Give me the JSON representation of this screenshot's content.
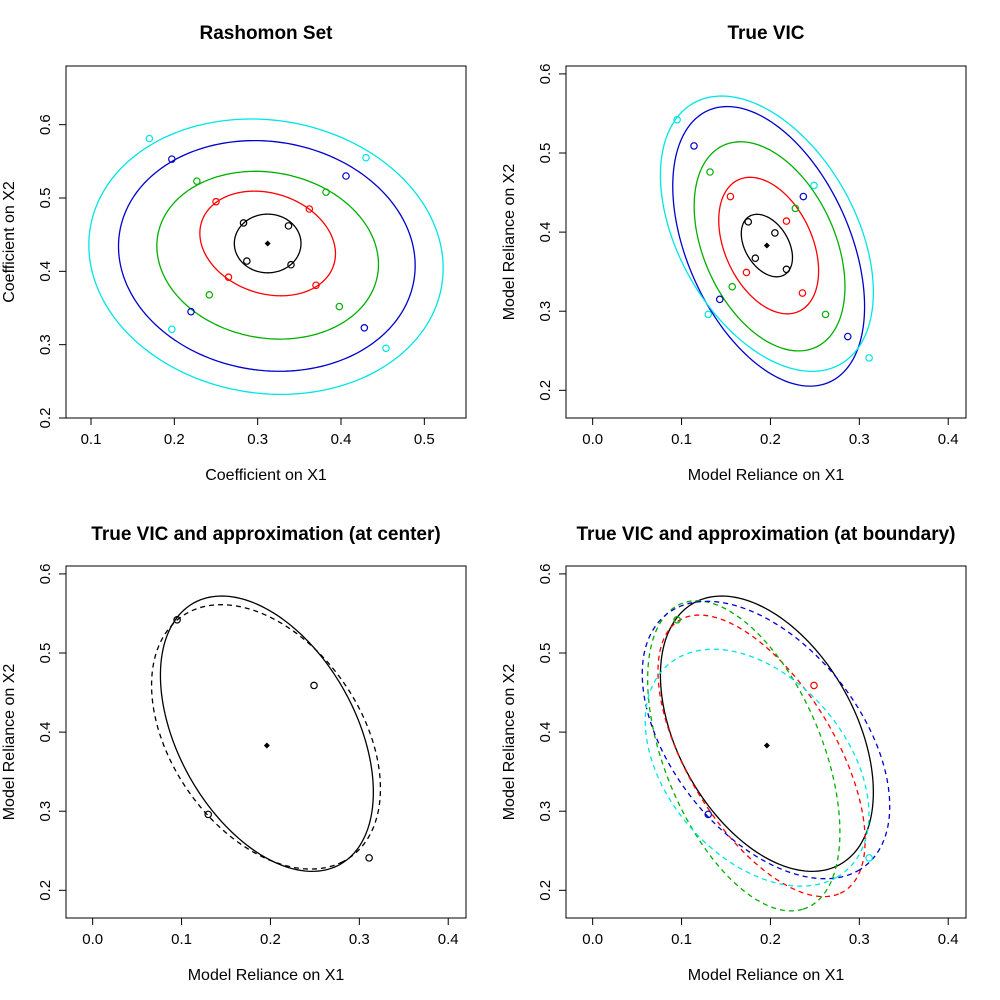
{
  "chart_data": [
    {
      "type": "contour",
      "title": "Rashomon Set",
      "xlabel": "Coefficient on X1",
      "ylabel": "Coefficient on X2",
      "xlim": [
        0.07,
        0.55
      ],
      "ylim": [
        0.2,
        0.68
      ],
      "xticks": [
        0.1,
        0.2,
        0.3,
        0.4,
        0.5
      ],
      "xtick_labels": [
        "0.1",
        "0.2",
        "0.3",
        "0.4",
        "0.5"
      ],
      "yticks": [
        0.2,
        0.3,
        0.4,
        0.5,
        0.6
      ],
      "ytick_labels": [
        "0.2",
        "0.3",
        "0.4",
        "0.5",
        "0.6"
      ],
      "center": [
        0.312,
        0.438
      ],
      "ellipses": [
        {
          "color": "#000000",
          "dash": "solid",
          "cx": 0.312,
          "cy": 0.438,
          "rx": 0.04,
          "ry": 0.04,
          "theta": -35,
          "points": [
            [
              0.283,
              0.466
            ],
            [
              0.337,
              0.462
            ],
            [
              0.287,
              0.414
            ],
            [
              0.34,
              0.409
            ]
          ]
        },
        {
          "color": "#ff0000",
          "dash": "solid",
          "cx": 0.312,
          "cy": 0.438,
          "rx": 0.085,
          "ry": 0.067,
          "theta": -28,
          "points": [
            [
              0.25,
              0.495
            ],
            [
              0.362,
              0.485
            ],
            [
              0.265,
              0.392
            ],
            [
              0.37,
              0.381
            ]
          ]
        },
        {
          "color": "#00b000",
          "dash": "solid",
          "cx": 0.312,
          "cy": 0.422,
          "rx": 0.135,
          "ry": 0.112,
          "theta": -18,
          "points": [
            [
              0.227,
              0.523
            ],
            [
              0.382,
              0.508
            ],
            [
              0.242,
              0.368
            ],
            [
              0.398,
              0.352
            ]
          ]
        },
        {
          "color": "#0000cc",
          "dash": "solid",
          "cx": 0.311,
          "cy": 0.421,
          "rx": 0.18,
          "ry": 0.155,
          "theta": -17,
          "points": [
            [
              0.197,
              0.553
            ],
            [
              0.406,
              0.53
            ],
            [
              0.22,
              0.345
            ],
            [
              0.428,
              0.323
            ]
          ]
        },
        {
          "color": "#00e5e5",
          "dash": "solid",
          "cx": 0.31,
          "cy": 0.42,
          "rx": 0.215,
          "ry": 0.185,
          "theta": -17,
          "points": [
            [
              0.17,
              0.581
            ],
            [
              0.43,
              0.555
            ],
            [
              0.197,
              0.321
            ],
            [
              0.454,
              0.295
            ]
          ]
        }
      ]
    },
    {
      "type": "contour",
      "title": "True VIC",
      "xlabel": "Model Reliance on X1",
      "ylabel": "Model Reliance on X2",
      "xlim": [
        -0.03,
        0.42
      ],
      "ylim": [
        0.165,
        0.61
      ],
      "xticks": [
        0.0,
        0.1,
        0.2,
        0.3,
        0.4
      ],
      "xtick_labels": [
        "0.0",
        "0.1",
        "0.2",
        "0.3",
        "0.4"
      ],
      "yticks": [
        0.2,
        0.3,
        0.4,
        0.5,
        0.6
      ],
      "ytick_labels": [
        "0.2",
        "0.3",
        "0.4",
        "0.5",
        "0.6"
      ],
      "center": [
        0.196,
        0.383
      ],
      "ellipses": [
        {
          "color": "#000000",
          "dash": "solid",
          "cx": 0.196,
          "cy": 0.383,
          "rx": 0.042,
          "ry": 0.025,
          "theta": -65,
          "points": [
            [
              0.175,
              0.413
            ],
            [
              0.205,
              0.399
            ],
            [
              0.183,
              0.367
            ],
            [
              0.218,
              0.353
            ]
          ]
        },
        {
          "color": "#ff0000",
          "dash": "solid",
          "cx": 0.198,
          "cy": 0.383,
          "rx": 0.09,
          "ry": 0.05,
          "theta": -70,
          "points": [
            [
              0.155,
              0.445
            ],
            [
              0.218,
              0.414
            ],
            [
              0.173,
              0.349
            ],
            [
              0.236,
              0.323
            ]
          ]
        },
        {
          "color": "#00b000",
          "dash": "solid",
          "cx": 0.199,
          "cy": 0.382,
          "rx": 0.138,
          "ry": 0.075,
          "theta": -70,
          "points": [
            [
              0.132,
              0.476
            ],
            [
              0.228,
              0.43
            ],
            [
              0.157,
              0.331
            ],
            [
              0.262,
              0.296
            ]
          ]
        },
        {
          "color": "#0000cc",
          "dash": "solid",
          "cx": 0.198,
          "cy": 0.382,
          "rx": 0.185,
          "ry": 0.093,
          "theta": -70,
          "points": [
            [
              0.114,
              0.509
            ],
            [
              0.237,
              0.445
            ],
            [
              0.143,
              0.315
            ],
            [
              0.287,
              0.268
            ]
          ]
        },
        {
          "color": "#00e5e5",
          "dash": "solid",
          "cx": 0.196,
          "cy": 0.398,
          "rx": 0.185,
          "ry": 0.102,
          "theta": -66,
          "points": [
            [
              0.095,
              0.542
            ],
            [
              0.249,
              0.459
            ],
            [
              0.13,
              0.296
            ],
            [
              0.311,
              0.241
            ]
          ]
        }
      ]
    },
    {
      "type": "contour",
      "title": "True VIC and approximation (at center)",
      "xlabel": "Model Reliance on X1",
      "ylabel": "Model Reliance on X2",
      "xlim": [
        -0.03,
        0.42
      ],
      "ylim": [
        0.165,
        0.61
      ],
      "xticks": [
        0.0,
        0.1,
        0.2,
        0.3,
        0.4
      ],
      "xtick_labels": [
        "0.0",
        "0.1",
        "0.2",
        "0.3",
        "0.4"
      ],
      "yticks": [
        0.2,
        0.3,
        0.4,
        0.5,
        0.6
      ],
      "ytick_labels": [
        "0.2",
        "0.3",
        "0.4",
        "0.5",
        "0.6"
      ],
      "center": [
        0.196,
        0.383
      ],
      "ellipses": [
        {
          "color": "#000000",
          "dash": "solid",
          "cx": 0.196,
          "cy": 0.398,
          "rx": 0.185,
          "ry": 0.102,
          "theta": -66,
          "points": [
            [
              0.095,
              0.542
            ],
            [
              0.249,
              0.459
            ],
            [
              0.13,
              0.296
            ],
            [
              0.311,
              0.241
            ]
          ]
        },
        {
          "color": "#000000",
          "dash": "dashed",
          "cx": 0.195,
          "cy": 0.394,
          "rx": 0.18,
          "ry": 0.11,
          "theta": -62,
          "points": []
        }
      ]
    },
    {
      "type": "contour",
      "title": "True VIC and approximation (at boundary)",
      "xlabel": "Model Reliance on X1",
      "ylabel": "Model Reliance on X2",
      "xlim": [
        -0.03,
        0.42
      ],
      "ylim": [
        0.165,
        0.61
      ],
      "xticks": [
        0.0,
        0.1,
        0.2,
        0.3,
        0.4
      ],
      "xtick_labels": [
        "0.0",
        "0.1",
        "0.2",
        "0.3",
        "0.4"
      ],
      "yticks": [
        0.2,
        0.3,
        0.4,
        0.5,
        0.6
      ],
      "ytick_labels": [
        "0.2",
        "0.3",
        "0.4",
        "0.5",
        "0.6"
      ],
      "center": [
        0.196,
        0.383
      ],
      "ellipses": [
        {
          "color": "#000000",
          "dash": "solid",
          "cx": 0.196,
          "cy": 0.398,
          "rx": 0.185,
          "ry": 0.102,
          "theta": -66,
          "points": []
        },
        {
          "color": "#ff0000",
          "dash": "dashed",
          "cx": 0.19,
          "cy": 0.37,
          "rx": 0.195,
          "ry": 0.085,
          "theta": -63,
          "points": [
            [
              0.249,
              0.459
            ]
          ]
        },
        {
          "color": "#00b000",
          "dash": "dashed",
          "cx": 0.17,
          "cy": 0.37,
          "rx": 0.205,
          "ry": 0.09,
          "theta": -71,
          "points": [
            [
              0.095,
              0.542
            ]
          ]
        },
        {
          "color": "#0000cc",
          "dash": "dashed",
          "cx": 0.195,
          "cy": 0.39,
          "rx": 0.195,
          "ry": 0.11,
          "theta": -58,
          "points": [
            [
              0.13,
              0.296
            ]
          ]
        },
        {
          "color": "#00e5e5",
          "dash": "dashed",
          "cx": 0.185,
          "cy": 0.355,
          "rx": 0.165,
          "ry": 0.105,
          "theta": -57,
          "points": [
            [
              0.311,
              0.241
            ]
          ]
        }
      ]
    }
  ]
}
